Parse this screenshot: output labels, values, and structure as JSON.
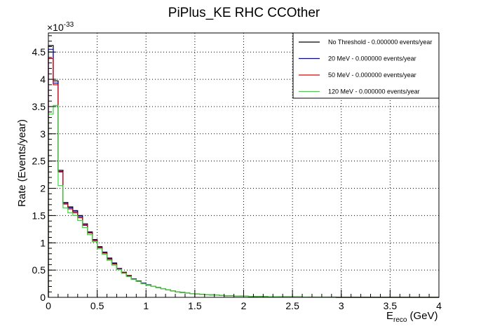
{
  "chart_data": {
    "type": "step",
    "title": "PiPlus_KE RHC CCOther",
    "xlabel_main": "E",
    "xlabel_sub": "reco",
    "xlabel_unit": "(GeV)",
    "ylabel": "Rate (Events/year)",
    "y_multiplier_base": "×10",
    "y_multiplier_exp": "-33",
    "xlim": [
      0,
      4
    ],
    "ylim": [
      0,
      4.85
    ],
    "xticks": [
      0,
      0.5,
      1,
      1.5,
      2,
      2.5,
      3,
      3.5,
      4
    ],
    "xtick_labels": [
      "0",
      "0.5",
      "1",
      "1.5",
      "2",
      "2.5",
      "3",
      "3.5",
      "4"
    ],
    "yticks": [
      0,
      0.5,
      1,
      1.5,
      2,
      2.5,
      3,
      3.5,
      4,
      4.5
    ],
    "ytick_labels": [
      "0",
      "0.5",
      "1",
      "1.5",
      "2",
      "2.5",
      "3",
      "3.5",
      "4",
      "4.5"
    ],
    "grid": true,
    "legend_position": "top-right",
    "bin_width": 0.05,
    "series": [
      {
        "name": "No Threshold - 0.000000 events/year",
        "color": "#000000",
        "values": [
          4.62,
          3.97,
          2.33,
          1.74,
          1.66,
          1.59,
          1.5,
          1.35,
          1.2,
          1.06,
          0.93,
          0.83,
          0.72,
          0.63,
          0.53,
          0.46,
          0.4,
          0.34,
          0.3,
          0.26,
          0.23,
          0.2,
          0.18,
          0.16,
          0.14,
          0.12,
          0.1,
          0.09,
          0.08,
          0.07,
          0.06,
          0.055,
          0.05,
          0.045,
          0.04,
          0.035,
          0.03,
          0.028,
          0.025,
          0.022,
          0.02,
          0.018,
          0.016,
          0.014,
          0.013,
          0.012,
          0.011,
          0.01,
          0.009,
          0.008,
          0.007,
          0.006,
          0.005,
          0.004,
          0.004,
          0.003,
          0.003,
          0.002,
          0.002,
          0,
          0,
          0,
          0,
          0,
          0,
          0,
          0,
          0,
          0,
          0,
          0,
          0,
          0,
          0,
          0,
          0,
          0,
          0,
          0,
          0
        ]
      },
      {
        "name": "20 MeV - 0.000000 events/year",
        "color": "#0000cc",
        "values": [
          4.55,
          3.93,
          2.31,
          1.72,
          1.64,
          1.57,
          1.48,
          1.33,
          1.19,
          1.05,
          0.92,
          0.82,
          0.71,
          0.62,
          0.53,
          0.45,
          0.39,
          0.34,
          0.29,
          0.26,
          0.23,
          0.2,
          0.18,
          0.16,
          0.14,
          0.12,
          0.1,
          0.09,
          0.08,
          0.07,
          0.06,
          0.055,
          0.05,
          0.045,
          0.04,
          0.035,
          0.03,
          0.028,
          0.025,
          0.022,
          0.02,
          0.018,
          0.016,
          0.014,
          0.013,
          0.012,
          0.011,
          0.01,
          0.009,
          0.008,
          0.007,
          0.006,
          0.005,
          0.004,
          0.004,
          0.003,
          0.003,
          0.002,
          0.002,
          0,
          0,
          0,
          0,
          0,
          0,
          0,
          0,
          0,
          0,
          0,
          0,
          0,
          0,
          0,
          0,
          0,
          0,
          0,
          0,
          0
        ]
      },
      {
        "name": "50 MeV - 0.000000 events/year",
        "color": "#dd0000",
        "values": [
          4.38,
          3.9,
          2.3,
          1.71,
          1.62,
          1.55,
          1.46,
          1.32,
          1.18,
          1.04,
          0.91,
          0.81,
          0.7,
          0.61,
          0.52,
          0.45,
          0.39,
          0.33,
          0.29,
          0.25,
          0.22,
          0.2,
          0.18,
          0.16,
          0.14,
          0.12,
          0.1,
          0.09,
          0.08,
          0.07,
          0.06,
          0.055,
          0.05,
          0.045,
          0.04,
          0.035,
          0.03,
          0.028,
          0.025,
          0.022,
          0.02,
          0.018,
          0.016,
          0.014,
          0.013,
          0.012,
          0.011,
          0.01,
          0.009,
          0.008,
          0.007,
          0.006,
          0.005,
          0.004,
          0.004,
          0.003,
          0.003,
          0.002,
          0.002,
          0,
          0,
          0,
          0,
          0,
          0,
          0,
          0,
          0,
          0,
          0,
          0,
          0,
          0,
          0,
          0,
          0,
          0,
          0,
          0,
          0
        ]
      },
      {
        "name": "120 MeV - 0.000000 events/year",
        "color": "#33dd33",
        "values": [
          3.36,
          3.52,
          2.05,
          1.64,
          1.55,
          1.5,
          1.41,
          1.28,
          1.15,
          1.02,
          0.89,
          0.79,
          0.68,
          0.59,
          0.51,
          0.44,
          0.38,
          0.33,
          0.29,
          0.25,
          0.22,
          0.2,
          0.18,
          0.16,
          0.14,
          0.12,
          0.1,
          0.09,
          0.08,
          0.07,
          0.06,
          0.055,
          0.05,
          0.045,
          0.04,
          0.035,
          0.03,
          0.028,
          0.025,
          0.022,
          0.02,
          0.018,
          0.016,
          0.014,
          0.013,
          0.012,
          0.011,
          0.01,
          0.009,
          0.008,
          0.007,
          0.006,
          0.005,
          0.004,
          0.004,
          0.003,
          0.003,
          0.002,
          0.002,
          0,
          0,
          0,
          0,
          0,
          0,
          0,
          0,
          0,
          0,
          0,
          0,
          0,
          0,
          0,
          0,
          0,
          0,
          0,
          0,
          0
        ]
      }
    ]
  }
}
